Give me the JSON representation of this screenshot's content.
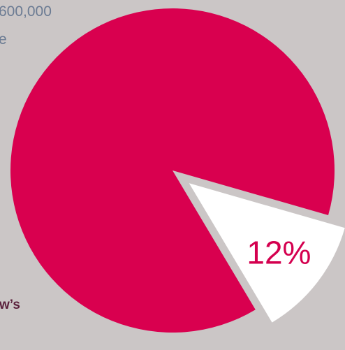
{
  "fragments": {
    "top_line_1": "600,000",
    "top_line_2": "e",
    "bottom": "w’s"
  },
  "chart_data": {
    "type": "pie",
    "slices": [
      {
        "value": 88,
        "color": "#d9004f"
      },
      {
        "value": 12,
        "color": "#ffffff",
        "label": "12%",
        "exploded": true
      }
    ]
  },
  "colors": {
    "background": "#cbc6c6",
    "pie_main": "#d9004f",
    "slice_highlight": "#ffffff",
    "label": "#d4004f",
    "fragment_text": "#6b7b93"
  }
}
